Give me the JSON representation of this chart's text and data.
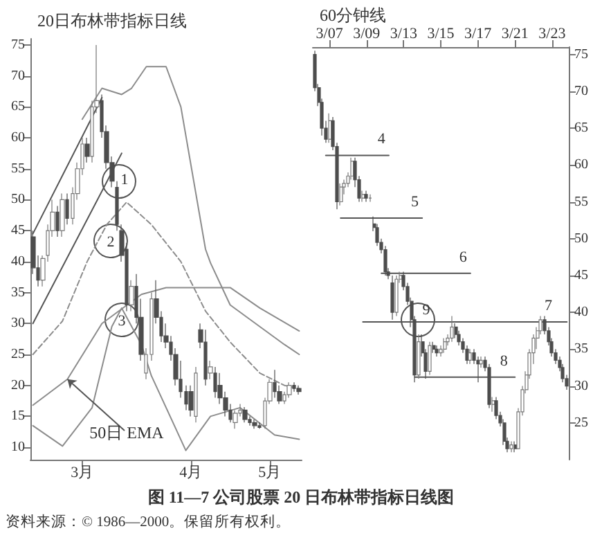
{
  "chart_data": [
    {
      "type": "candlestick",
      "title": "20日布林带指标日线",
      "ylim": [
        8,
        76
      ],
      "yticks": [
        10,
        15,
        20,
        25,
        30,
        35,
        40,
        45,
        50,
        55,
        60,
        65,
        70,
        75
      ],
      "grid": false,
      "legend": false,
      "marker": "none",
      "categories": [
        null,
        null,
        null,
        null,
        null,
        null,
        null,
        null,
        null,
        null,
        "3月",
        null,
        null,
        null,
        null,
        null,
        null,
        null,
        null,
        null,
        null,
        null,
        null,
        null,
        null,
        null,
        null,
        null,
        null,
        null,
        null,
        null,
        "4月",
        null,
        null,
        null,
        null,
        null,
        null,
        null,
        null,
        null,
        null,
        null,
        null,
        null,
        null,
        null,
        "5月",
        null,
        null,
        null,
        null,
        null,
        null
      ],
      "ohlc": [
        [
          44,
          45,
          38,
          39
        ],
        [
          39,
          41,
          36,
          37
        ],
        [
          37,
          41,
          36,
          40.5
        ],
        [
          41,
          46,
          40,
          45
        ],
        [
          45,
          50,
          44,
          48
        ],
        [
          48,
          49,
          44,
          45
        ],
        [
          45,
          51,
          44,
          50
        ],
        [
          50,
          51,
          46,
          47
        ],
        [
          47,
          52,
          46,
          51
        ],
        [
          51,
          56,
          50,
          55
        ],
        [
          55,
          60,
          54,
          59
        ],
        [
          59,
          60,
          56,
          57
        ],
        [
          57,
          66,
          56,
          65
        ],
        [
          65,
          75,
          64,
          66
        ],
        [
          66,
          67,
          60,
          61
        ],
        [
          61,
          62,
          55,
          56
        ],
        [
          56,
          57,
          52,
          53
        ],
        [
          52,
          53,
          45,
          46
        ],
        [
          45,
          46,
          40,
          41
        ],
        [
          42,
          43,
          32,
          33
        ],
        [
          33,
          37,
          32,
          36
        ],
        [
          36,
          38,
          30,
          31
        ],
        [
          31,
          34,
          24,
          25
        ],
        [
          22,
          26,
          21,
          25
        ],
        [
          25,
          35,
          24,
          34
        ],
        [
          34,
          37,
          30,
          31
        ],
        [
          31,
          32,
          27,
          28
        ],
        [
          28,
          30,
          26,
          27
        ],
        [
          27,
          28,
          24,
          25
        ],
        [
          25,
          26,
          20,
          21
        ],
        [
          21,
          24,
          18,
          19
        ],
        [
          19,
          20,
          16,
          17
        ],
        [
          19,
          20,
          15,
          16
        ],
        [
          15,
          23,
          14,
          22
        ],
        [
          29,
          30,
          26,
          27
        ],
        [
          27,
          29,
          20,
          21
        ],
        [
          22,
          24,
          21,
          23
        ],
        [
          22,
          23,
          18,
          19
        ],
        [
          20,
          22,
          17,
          18
        ],
        [
          18,
          19,
          15,
          16
        ],
        [
          16,
          17,
          14,
          14.5
        ],
        [
          14,
          16,
          13,
          15.5
        ],
        [
          15.5,
          17,
          15,
          16
        ],
        [
          16,
          16.5,
          14,
          14.5
        ],
        [
          14.5,
          15,
          13.5,
          14
        ],
        [
          14,
          14.5,
          13,
          13.5
        ],
        [
          13.5,
          14,
          13,
          13.2
        ],
        [
          13.5,
          18,
          13,
          17.5
        ],
        [
          17.5,
          21,
          17,
          20.5
        ],
        [
          20.5,
          22.5,
          18,
          19
        ],
        [
          19,
          20,
          17,
          17.5
        ],
        [
          17.5,
          19,
          17,
          18.5
        ],
        [
          18.5,
          20.5,
          18,
          20
        ],
        [
          20,
          20.5,
          19,
          19.5
        ],
        [
          19.5,
          20,
          18.5,
          19
        ]
      ],
      "series": [
        {
          "type": "line",
          "color": "#8c8c8c",
          "values": [
            null,
            null,
            null,
            null,
            null,
            null,
            null,
            null,
            null,
            null,
            63,
            null,
            null,
            null,
            68,
            null,
            null,
            null,
            67,
            null,
            68,
            null,
            null,
            71.5,
            null,
            null,
            null,
            71.5,
            null,
            null,
            65,
            null,
            null,
            null,
            null,
            42,
            39.8,
            null,
            null,
            null,
            33,
            null,
            null,
            null,
            null,
            null,
            29.5,
            null,
            null,
            null,
            null,
            26.6,
            null,
            null,
            25
          ]
        },
        {
          "type": "line",
          "color": "#8c8c8c",
          "line_style": "dashed",
          "values": [
            25,
            null,
            null,
            null,
            null,
            null,
            30.4,
            null,
            null,
            null,
            null,
            40,
            null,
            null,
            null,
            46,
            null,
            null,
            null,
            49.6,
            null,
            null,
            null,
            null,
            46,
            null,
            null,
            null,
            null,
            null,
            40,
            null,
            null,
            null,
            null,
            32,
            null,
            null,
            null,
            null,
            27,
            null,
            null,
            null,
            null,
            null,
            22,
            null,
            null,
            null,
            null,
            20,
            null,
            null,
            19.5
          ]
        },
        {
          "type": "line",
          "color": "#8c8c8c",
          "values": [
            13.5,
            null,
            null,
            null,
            null,
            null,
            10.2,
            null,
            null,
            null,
            null,
            null,
            16.4,
            null,
            null,
            null,
            29.5,
            null,
            32.5,
            null,
            null,
            null,
            26.6,
            null,
            21.6,
            null,
            null,
            null,
            null,
            null,
            null,
            9.5,
            null,
            null,
            null,
            null,
            15,
            null,
            null,
            null,
            null,
            null,
            16.4,
            null,
            null,
            null,
            null,
            null,
            null,
            12,
            null,
            null,
            null,
            null,
            11.3
          ]
        },
        {
          "type": "line",
          "color": "#8c8c8c",
          "name": "50日 EMA",
          "values": [
            16.8,
            null,
            null,
            null,
            null,
            null,
            null,
            21,
            null,
            null,
            null,
            null,
            null,
            null,
            30,
            null,
            null,
            null,
            null,
            null,
            null,
            null,
            34.7,
            null,
            null,
            null,
            null,
            35.8,
            null,
            null,
            null,
            null,
            null,
            null,
            null,
            null,
            null,
            null,
            null,
            null,
            35.8,
            null,
            null,
            null,
            null,
            null,
            32.5,
            null,
            null,
            null,
            null,
            null,
            null,
            null,
            28.8
          ]
        },
        {
          "type": "line",
          "color": "#555555",
          "values": [
            44.5,
            null,
            null,
            null,
            null,
            null,
            null,
            null,
            null,
            null,
            null,
            null,
            null,
            null,
            66.5,
            null,
            null,
            null,
            null,
            null,
            null,
            null,
            null,
            null,
            null,
            null,
            null,
            null,
            null,
            null,
            null,
            null,
            null,
            null,
            null,
            null,
            null,
            null,
            null,
            null,
            null,
            null,
            null,
            null,
            null,
            null,
            null,
            null,
            null,
            null,
            null,
            null,
            null,
            null,
            null
          ]
        },
        {
          "type": "line",
          "color": "#555555",
          "values": [
            30,
            null,
            null,
            null,
            null,
            null,
            null,
            null,
            null,
            null,
            null,
            null,
            null,
            null,
            null,
            null,
            null,
            null,
            57.5,
            null,
            null,
            null,
            null,
            null,
            null,
            null,
            null,
            null,
            null,
            null,
            null,
            null,
            null,
            null,
            null,
            null,
            null,
            null,
            null,
            null,
            null,
            null,
            null,
            null,
            null,
            null,
            null,
            null,
            null,
            null,
            null,
            null,
            null,
            null,
            null
          ]
        }
      ],
      "annotations": [
        "1",
        "2",
        "3",
        "图 11—7 公司股票 20 日布林带指标日线图",
        "资料来源：© 1986—2000。保留所有权利。"
      ]
    },
    {
      "type": "candlestick",
      "title": "60分钟线",
      "ylim": [
        20,
        76
      ],
      "yticks": [
        25,
        30,
        35,
        40,
        45,
        50,
        55,
        60,
        65,
        70,
        75
      ],
      "grid": false,
      "legend": false,
      "marker": "none",
      "categories": [
        null,
        null,
        null,
        null,
        "3/07",
        null,
        null,
        null,
        null,
        null,
        null,
        null,
        null,
        null,
        "3/09",
        null,
        null,
        null,
        null,
        null,
        null,
        null,
        null,
        null,
        "3/13",
        null,
        null,
        null,
        null,
        null,
        null,
        null,
        null,
        null,
        "3/15",
        null,
        null,
        null,
        null,
        null,
        null,
        null,
        null,
        null,
        "3/17",
        null,
        null,
        null,
        null,
        null,
        null,
        null,
        null,
        null,
        "3/21",
        null,
        null,
        null,
        null,
        null,
        null,
        null,
        null,
        null,
        "3/23",
        null,
        null,
        null,
        null
      ],
      "ohlc": [
        [
          75,
          75.5,
          70,
          70.5
        ],
        [
          70.5,
          71,
          68,
          68.5
        ],
        [
          68.5,
          69,
          64,
          65
        ],
        [
          65,
          66,
          63,
          63.5
        ],
        [
          63.5,
          67,
          63,
          66
        ],
        [
          66,
          66.5,
          62,
          62.5
        ],
        [
          62.5,
          63,
          54,
          55
        ],
        [
          55,
          57.5,
          54.5,
          57
        ],
        [
          57,
          58,
          56,
          57.5
        ],
        [
          57.5,
          59,
          57,
          58.5
        ],
        [
          58.5,
          61,
          58,
          60.5
        ],
        [
          60.5,
          61,
          57,
          58
        ],
        [
          58,
          58.5,
          55,
          55.5
        ],
        [
          55.5,
          56.5,
          55,
          56
        ],
        [
          56,
          56.5,
          55,
          55.5
        ],
        [
          55.5,
          56,
          55,
          55.5
        ],
        [
          52,
          53,
          51,
          51.5
        ],
        [
          51.5,
          52,
          49,
          49.5
        ],
        [
          49.5,
          50,
          48,
          48.5
        ],
        [
          48.5,
          49,
          45,
          45.5
        ],
        [
          45.5,
          46,
          44.5,
          45
        ],
        [
          44,
          45,
          39,
          40
        ],
        [
          40,
          45,
          39.5,
          44.5
        ],
        [
          44.5,
          45.5,
          44,
          45
        ],
        [
          45,
          45.5,
          43,
          43.5
        ],
        [
          43.5,
          44,
          41,
          41.5
        ],
        [
          41.5,
          42,
          38,
          39
        ],
        [
          39,
          39.5,
          30.5,
          31.5
        ],
        [
          31.5,
          37,
          31,
          36
        ],
        [
          36,
          37,
          34,
          34.5
        ],
        [
          34.5,
          35,
          31,
          32
        ],
        [
          32,
          36,
          31.5,
          35.5
        ],
        [
          35.5,
          36,
          34.5,
          35
        ],
        [
          35,
          35.5,
          34,
          34.5
        ],
        [
          34.5,
          35.5,
          34,
          35
        ],
        [
          35,
          36.5,
          34.5,
          36
        ],
        [
          36,
          37,
          35.5,
          36.5
        ],
        [
          36.5,
          39.5,
          36,
          38
        ],
        [
          38,
          38.5,
          36.5,
          37
        ],
        [
          37,
          37.5,
          35.5,
          36
        ],
        [
          36,
          36.5,
          34.5,
          35
        ],
        [
          35,
          35.5,
          33,
          33.5
        ],
        [
          33.5,
          35,
          33,
          34.5
        ],
        [
          34.5,
          35,
          33,
          33.5
        ],
        [
          33.5,
          34,
          30.5,
          33
        ],
        [
          33,
          34,
          32.5,
          33.5
        ],
        [
          33.5,
          34,
          32,
          32.5
        ],
        [
          32.5,
          33,
          27,
          27.5
        ],
        [
          27.5,
          28.5,
          26.5,
          28
        ],
        [
          28,
          28.5,
          25.5,
          26
        ],
        [
          26,
          26.5,
          24.5,
          25
        ],
        [
          25,
          25.5,
          22,
          22.5
        ],
        [
          22.5,
          23,
          21,
          21.5
        ],
        [
          21.5,
          22.5,
          21,
          22
        ],
        [
          22,
          22.5,
          21,
          21.5
        ],
        [
          21.5,
          27,
          21.5,
          26.5
        ],
        [
          26.5,
          30,
          26,
          29.5
        ],
        [
          29.5,
          32,
          29,
          31.5
        ],
        [
          31.5,
          35,
          31,
          34.5
        ],
        [
          34.5,
          37,
          33,
          36.5
        ],
        [
          36.5,
          38,
          35,
          37.5
        ],
        [
          37.5,
          39.5,
          37,
          39
        ],
        [
          39,
          39.5,
          37,
          37.5
        ],
        [
          37.5,
          38,
          35.5,
          36
        ],
        [
          36,
          36.5,
          34,
          34.5
        ],
        [
          34.5,
          35,
          33,
          33.5
        ],
        [
          33.5,
          34,
          32,
          32.5
        ],
        [
          32.5,
          33,
          30.5,
          31
        ],
        [
          31,
          31.5,
          29.5,
          30
        ]
      ],
      "series": [
        {
          "type": "line",
          "color": "#555555",
          "name": "4",
          "values": [
            null,
            null,
            null,
            61.3,
            null,
            null,
            null,
            null,
            null,
            null,
            null,
            null,
            null,
            null,
            null,
            null,
            null,
            null,
            null,
            null,
            61.3,
            null,
            null,
            null,
            null,
            null,
            null,
            null,
            null,
            null,
            null,
            null,
            null,
            null,
            null,
            null,
            null,
            null,
            null,
            null,
            null,
            null,
            null,
            null,
            null,
            null,
            null,
            null,
            null,
            null,
            null,
            null,
            null,
            null,
            null,
            null,
            null,
            null,
            null,
            null,
            null,
            null,
            null,
            null,
            null,
            null,
            null,
            null,
            null
          ]
        },
        {
          "type": "line",
          "color": "#555555",
          "name": "5",
          "values": [
            null,
            null,
            null,
            null,
            null,
            null,
            null,
            52.8,
            null,
            null,
            null,
            null,
            null,
            null,
            null,
            null,
            null,
            null,
            null,
            null,
            null,
            null,
            null,
            null,
            null,
            null,
            null,
            null,
            null,
            52.8,
            null,
            null,
            null,
            null,
            null,
            null,
            null,
            null,
            null,
            null,
            null,
            null,
            null,
            null,
            null,
            null,
            null,
            null,
            null,
            null,
            null,
            null,
            null,
            null,
            null,
            null,
            null,
            null,
            null,
            null,
            null,
            null,
            null,
            null,
            null,
            null,
            null,
            null,
            null
          ]
        },
        {
          "type": "line",
          "color": "#555555",
          "name": "6",
          "values": [
            null,
            null,
            null,
            null,
            null,
            null,
            null,
            null,
            null,
            null,
            null,
            null,
            null,
            null,
            null,
            null,
            null,
            null,
            45.3,
            null,
            null,
            null,
            null,
            null,
            null,
            null,
            null,
            null,
            null,
            null,
            null,
            null,
            null,
            null,
            null,
            null,
            null,
            null,
            null,
            null,
            null,
            null,
            45.3,
            null,
            null,
            null,
            null,
            null,
            null,
            null,
            null,
            null,
            null,
            null,
            null,
            null,
            null,
            null,
            null,
            null,
            null,
            null,
            null,
            null,
            null,
            null,
            null,
            null,
            null
          ]
        },
        {
          "type": "line",
          "color": "#555555",
          "name": "7",
          "values": [
            null,
            null,
            null,
            null,
            null,
            null,
            null,
            null,
            null,
            null,
            null,
            null,
            null,
            38.7,
            null,
            null,
            null,
            null,
            null,
            null,
            null,
            null,
            null,
            null,
            null,
            null,
            null,
            null,
            null,
            null,
            null,
            null,
            null,
            null,
            null,
            null,
            null,
            null,
            null,
            null,
            null,
            null,
            null,
            null,
            null,
            null,
            null,
            null,
            null,
            null,
            null,
            null,
            null,
            null,
            null,
            null,
            null,
            null,
            null,
            null,
            null,
            null,
            null,
            null,
            null,
            null,
            null,
            null,
            38.7
          ]
        },
        {
          "type": "line",
          "color": "#555555",
          "name": "8",
          "values": [
            null,
            null,
            null,
            null,
            null,
            null,
            null,
            null,
            null,
            null,
            null,
            null,
            null,
            null,
            null,
            null,
            null,
            null,
            null,
            null,
            null,
            null,
            null,
            null,
            null,
            null,
            null,
            31.2,
            null,
            null,
            null,
            null,
            null,
            null,
            null,
            null,
            null,
            null,
            null,
            null,
            null,
            null,
            null,
            null,
            null,
            null,
            null,
            null,
            null,
            null,
            null,
            null,
            null,
            null,
            31.2,
            null,
            null,
            null,
            null,
            null,
            null,
            null,
            null,
            null,
            null,
            null,
            null,
            null,
            null
          ]
        }
      ],
      "annotations": [
        "9"
      ]
    }
  ]
}
